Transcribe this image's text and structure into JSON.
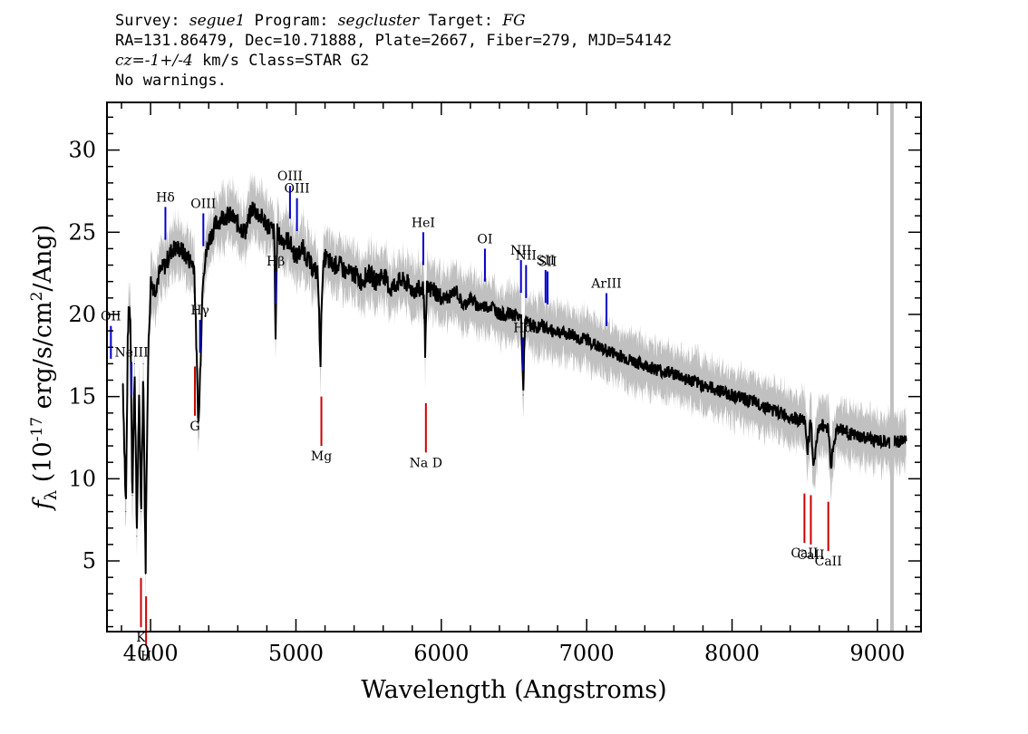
{
  "header": {
    "line1": {
      "survey_label": "Survey: ",
      "survey": "segue1",
      "program_label": " Program: ",
      "program": "segcluster",
      "target_label": " Target: ",
      "target": "FG"
    },
    "line2": "RA=131.86479, Dec=10.71888, Plate=2667, Fiber=279, MJD=54142",
    "line3": {
      "cz_value": "cz=-1+/-4",
      "rest": " km/s Class=STAR G2"
    },
    "line4": "No warnings."
  },
  "chart_data": {
    "type": "line",
    "xlabel": "Wavelength (Angstroms)",
    "ylabel": "f_λ (10^-17 erg/s/cm^2/Ang)",
    "xlim": [
      3700,
      9300
    ],
    "ylim": [
      0.7,
      32.9
    ],
    "x_ticks": [
      4000,
      5000,
      6000,
      7000,
      8000,
      9000
    ],
    "y_ticks": [
      5,
      10,
      15,
      20,
      25,
      30
    ],
    "grid": false,
    "colors": {
      "flux": "#000000",
      "noise_band": "#c0c0c0",
      "emission_lines": "#0000cc",
      "absorption_lines": "#cc0000",
      "skyline_marker": "#c0c0c0"
    },
    "series": [
      {
        "x": [
          3810,
          3830,
          3845,
          3860,
          3875,
          3890,
          3905,
          3920,
          3935,
          3950,
          3965,
          3980,
          4000,
          4030,
          4060,
          4100,
          4150,
          4200,
          4250,
          4300,
          4330,
          4360,
          4400,
          4450,
          4500,
          4550,
          4600,
          4650,
          4700,
          4750,
          4800,
          4850,
          4860,
          4870,
          4900,
          4950,
          5000,
          5050,
          5100,
          5150,
          5170,
          5180,
          5200,
          5250,
          5300,
          5350,
          5400,
          5450,
          5500,
          5550,
          5600,
          5650,
          5700,
          5750,
          5800,
          5850,
          5880,
          5890,
          5900,
          5950,
          6000,
          6050,
          6100,
          6150,
          6200,
          6250,
          6300,
          6350,
          6400,
          6450,
          6500,
          6550,
          6563,
          6575,
          6600,
          6650,
          6700,
          6750,
          6800,
          6850,
          6900,
          6950,
          7000,
          7100,
          7200,
          7300,
          7400,
          7500,
          7600,
          7700,
          7800,
          7900,
          8000,
          8100,
          8200,
          8300,
          8400,
          8450,
          8498,
          8520,
          8542,
          8560,
          8600,
          8640,
          8662,
          8680,
          8720,
          8760,
          8800,
          8850,
          8900,
          8950,
          9000,
          9050,
          9100,
          9150,
          9200
        ],
        "y": [
          15.8,
          8,
          19.5,
          20.5,
          9,
          17,
          6.5,
          15,
          8,
          17,
          4.2,
          16,
          22,
          21.5,
          22.5,
          23,
          24,
          24,
          23.5,
          23,
          13,
          22.5,
          24.5,
          25.5,
          26,
          26,
          25.5,
          25,
          26.5,
          26,
          25.5,
          25,
          18.5,
          25,
          24.5,
          24.5,
          23.5,
          24,
          23,
          22.5,
          17,
          22,
          23.5,
          23,
          23,
          22.5,
          22.5,
          22,
          22.5,
          22,
          22.5,
          21.5,
          22,
          22,
          21.5,
          21.5,
          21.5,
          17.5,
          21.5,
          21.5,
          21,
          21,
          21.5,
          20.5,
          21,
          20.5,
          20.5,
          20.5,
          20,
          20,
          20,
          19.8,
          15.1,
          19.5,
          19.5,
          19.2,
          19.3,
          19,
          19,
          18.8,
          18.8,
          18.5,
          18.5,
          17.9,
          17.6,
          17.2,
          16.9,
          16.6,
          16.4,
          16,
          15.7,
          15.4,
          15.1,
          14.8,
          14.5,
          14.1,
          13.8,
          13.6,
          13.6,
          11.8,
          13.5,
          10.8,
          13.3,
          13.2,
          13.1,
          10.9,
          13.1,
          13,
          12.8,
          12.6,
          12.5,
          12.4,
          12.3,
          12.2,
          12.2,
          12.3,
          12.4
        ]
      }
    ],
    "line_labels": [
      {
        "name": "OII",
        "x": 3727,
        "kind": "emission"
      },
      {
        "name": "NeIII",
        "x": 3869,
        "kind": "emission"
      },
      {
        "name": "Hδ",
        "x": 4102,
        "kind": "emission"
      },
      {
        "name": "Hγ",
        "x": 4340,
        "kind": "emission"
      },
      {
        "name": "OIII",
        "x": 4363,
        "kind": "emission"
      },
      {
        "name": "Hβ",
        "x": 4861,
        "kind": "emission"
      },
      {
        "name": "OIII",
        "x": 4959,
        "kind": "emission"
      },
      {
        "name": "OIII",
        "x": 5007,
        "kind": "emission"
      },
      {
        "name": "HeI",
        "x": 5876,
        "kind": "emission"
      },
      {
        "name": "OI",
        "x": 6300,
        "kind": "emission"
      },
      {
        "name": "NII",
        "x": 6548,
        "kind": "emission"
      },
      {
        "name": "Hα",
        "x": 6563,
        "kind": "emission"
      },
      {
        "name": "NII",
        "x": 6583,
        "kind": "emission"
      },
      {
        "name": "SII",
        "x": 6717,
        "kind": "emission"
      },
      {
        "name": "SII",
        "x": 6731,
        "kind": "emission"
      },
      {
        "name": "ArIII",
        "x": 7136,
        "kind": "emission"
      },
      {
        "name": "K",
        "x": 3934,
        "kind": "absorption"
      },
      {
        "name": "H",
        "x": 3969,
        "kind": "absorption"
      },
      {
        "name": "G",
        "x": 4305,
        "kind": "absorption"
      },
      {
        "name": "Mg",
        "x": 5175,
        "kind": "absorption"
      },
      {
        "name": "Na D",
        "x": 5894,
        "kind": "absorption"
      },
      {
        "name": "CaII",
        "x": 8498,
        "kind": "absorption"
      },
      {
        "name": "CaII",
        "x": 8542,
        "kind": "absorption"
      },
      {
        "name": "CaII",
        "x": 8662,
        "kind": "absorption"
      }
    ],
    "skyline_x": 9100
  }
}
